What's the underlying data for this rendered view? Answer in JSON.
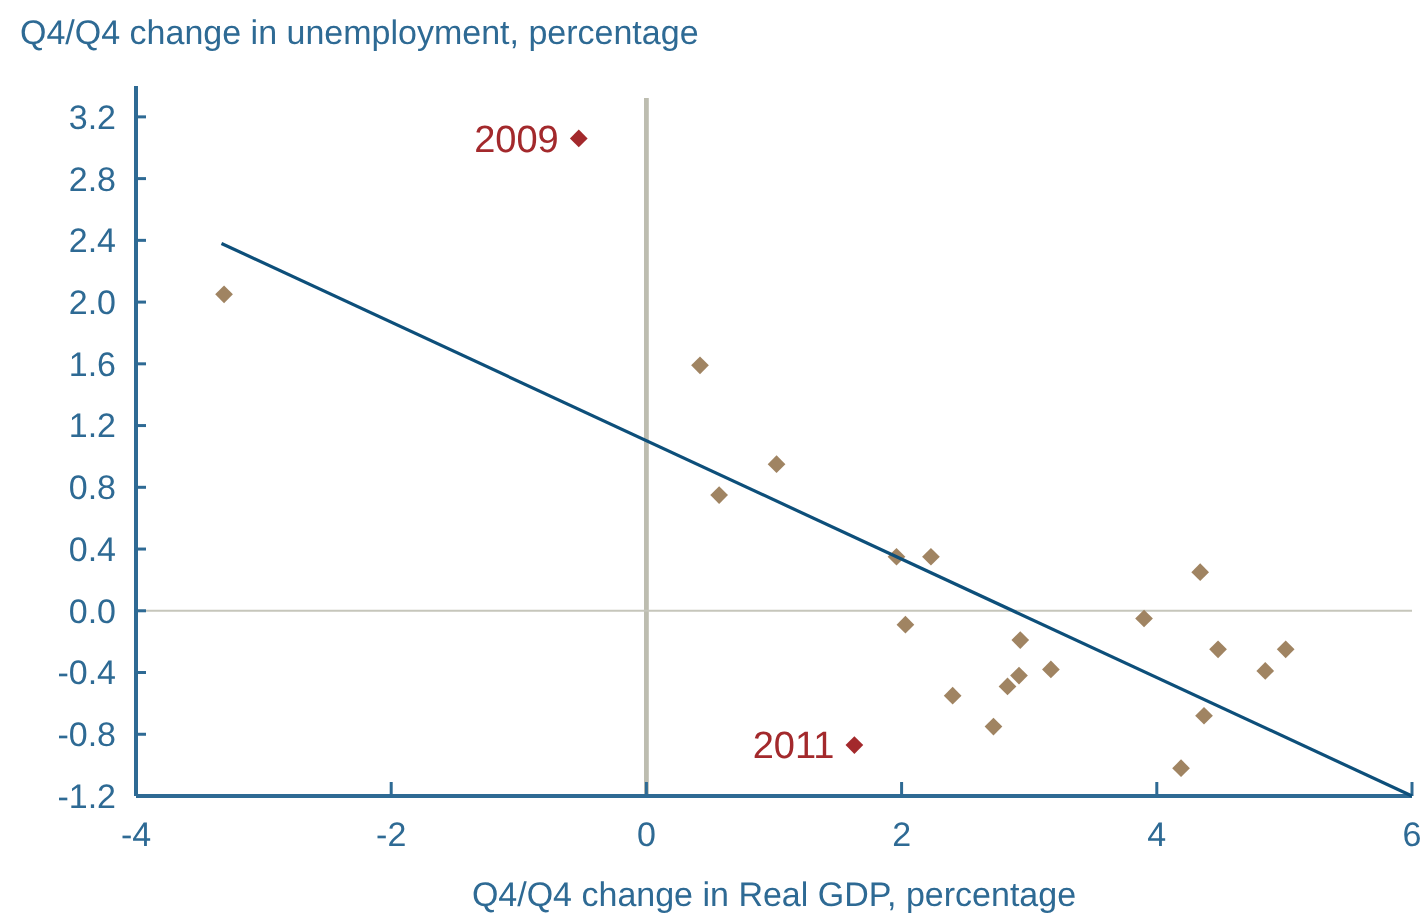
{
  "chart_data": {
    "type": "scatter",
    "ylabel": "Q4/Q4 change in unemployment, percentage",
    "xlabel": "Q4/Q4 change in Real GDP, percentage",
    "xlim": [
      -4,
      6
    ],
    "xticks": [
      -4,
      -2,
      0,
      2,
      4,
      6
    ],
    "ylim": [
      -1.2,
      3.4
    ],
    "yticks": [
      {
        "value": -1.2,
        "label": "-1.2"
      },
      {
        "value": -0.8,
        "label": "-0.8"
      },
      {
        "value": -0.4,
        "label": "-0.4"
      },
      {
        "value": 0,
        "label": "0.0"
      },
      {
        "value": 0.4,
        "label": "0.4"
      },
      {
        "value": 0.8,
        "label": "0.8"
      },
      {
        "value": 1.2,
        "label": "1.2"
      },
      {
        "value": 1.6,
        "label": "1.6"
      },
      {
        "value": 2.0,
        "label": "2.0"
      },
      {
        "value": 2.4,
        "label": "2.4"
      },
      {
        "value": 2.8,
        "label": "2.8"
      },
      {
        "value": 3.2,
        "label": "3.2"
      }
    ],
    "grid": false,
    "marker": "diamond",
    "series": [
      {
        "color": "#a08462",
        "x": [
          -3.31,
          0.42,
          0.57,
          1.02,
          1.96,
          2.23,
          2.03,
          2.4,
          2.72,
          2.83,
          2.92,
          2.93,
          3.17,
          3.9,
          4.34,
          4.37,
          4.19,
          4.48,
          4.85,
          5.01
        ],
        "values": [
          2.05,
          1.59,
          0.75,
          0.95,
          0.35,
          0.35,
          -0.09,
          -0.55,
          -0.75,
          -0.49,
          -0.42,
          -0.19,
          -0.38,
          -0.05,
          0.25,
          -0.68,
          -1.02,
          -0.25,
          -0.39,
          -0.25
        ]
      },
      {
        "color": "#a3292c",
        "x": [
          -0.53,
          1.63
        ],
        "values": [
          3.06,
          -0.87
        ]
      },
      {
        "type": "line",
        "color": "#0d4f7a",
        "marker": "none",
        "line_style": "solid",
        "x": [
          -3.33,
          6
        ],
        "values": [
          2.38,
          -1.2
        ]
      }
    ],
    "ref_lines": [
      {
        "axis": "x",
        "value": 0,
        "color": "#bdbdb0"
      },
      {
        "axis": "y",
        "value": 0,
        "color": "#c6c6bb"
      }
    ],
    "annotations": [
      {
        "text": "2009",
        "x": -0.53,
        "y": 3.06
      },
      {
        "text": "2011",
        "x": 1.63,
        "y": -0.87
      }
    ]
  }
}
